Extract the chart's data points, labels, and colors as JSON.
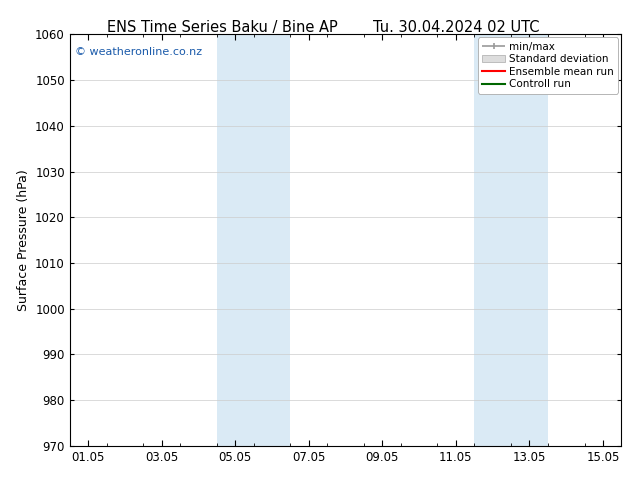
{
  "title_left": "ENS Time Series Baku / Bine AP",
  "title_right": "Tu. 30.04.2024 02 UTC",
  "ylabel": "Surface Pressure (hPa)",
  "ylim": [
    970,
    1060
  ],
  "yticks": [
    970,
    980,
    990,
    1000,
    1010,
    1020,
    1030,
    1040,
    1050,
    1060
  ],
  "xtick_labels": [
    "01.05",
    "03.05",
    "05.05",
    "07.05",
    "09.05",
    "11.05",
    "13.05",
    "15.05"
  ],
  "xtick_positions": [
    0,
    2,
    4,
    6,
    8,
    10,
    12,
    14
  ],
  "shaded_regions": [
    {
      "x_start": 3.5,
      "x_end": 5.5,
      "color": "#daeaf5"
    },
    {
      "x_start": 10.5,
      "x_end": 12.5,
      "color": "#daeaf5"
    }
  ],
  "watermark_text": "© weatheronline.co.nz",
  "watermark_color": "#1a5aaa",
  "legend_labels": [
    "min/max",
    "Standard deviation",
    "Ensemble mean run",
    "Controll run"
  ],
  "legend_colors_line": [
    "#999999",
    "#cccccc",
    "#ff0000",
    "#006600"
  ],
  "background_color": "#ffffff",
  "grid_color": "#cccccc",
  "title_fontsize": 10.5,
  "axis_fontsize": 8.5,
  "ylabel_fontsize": 9
}
